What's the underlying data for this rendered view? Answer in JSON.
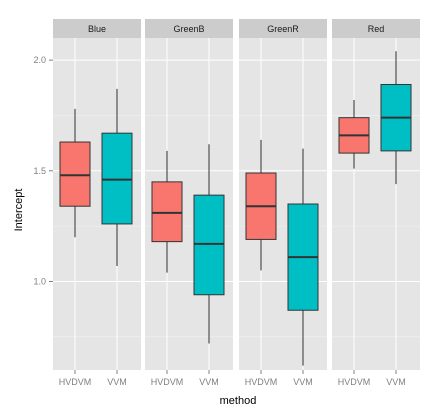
{
  "chart_data": {
    "type": "boxplot",
    "xlabel": "method",
    "ylabel": "Intercept",
    "ylim": [
      0.6,
      2.1
    ],
    "y_ticks": [
      1.0,
      1.5,
      2.0
    ],
    "y_tick_labels": [
      "1.0",
      "1.5",
      "2.0"
    ],
    "y_minor_ticks": [
      0.75,
      1.25,
      1.75
    ],
    "categories": [
      "HVDVM",
      "VVM"
    ],
    "colors": {
      "HVDVM": "#f8766d",
      "VVM": "#00bfc4"
    },
    "grid": true,
    "legend": "none",
    "panels": [
      {
        "name": "Blue",
        "boxes": [
          {
            "category": "HVDVM",
            "min": 1.2,
            "q1": 1.34,
            "median": 1.48,
            "q3": 1.63,
            "max": 1.78
          },
          {
            "category": "VVM",
            "min": 1.07,
            "q1": 1.26,
            "median": 1.46,
            "q3": 1.67,
            "max": 1.87
          }
        ]
      },
      {
        "name": "GreenB",
        "boxes": [
          {
            "category": "HVDVM",
            "min": 1.04,
            "q1": 1.18,
            "median": 1.31,
            "q3": 1.45,
            "max": 1.59
          },
          {
            "category": "VVM",
            "min": 0.72,
            "q1": 0.94,
            "median": 1.17,
            "q3": 1.39,
            "max": 1.62
          }
        ]
      },
      {
        "name": "GreenR",
        "boxes": [
          {
            "category": "HVDVM",
            "min": 1.05,
            "q1": 1.19,
            "median": 1.34,
            "q3": 1.49,
            "max": 1.64
          },
          {
            "category": "VVM",
            "min": 0.62,
            "q1": 0.87,
            "median": 1.11,
            "q3": 1.35,
            "max": 1.6
          }
        ]
      },
      {
        "name": "Red",
        "boxes": [
          {
            "category": "HVDVM",
            "min": 1.51,
            "q1": 1.58,
            "median": 1.66,
            "q3": 1.74,
            "max": 1.82
          },
          {
            "category": "VVM",
            "min": 1.44,
            "q1": 1.59,
            "median": 1.74,
            "q3": 1.89,
            "max": 2.04
          }
        ]
      }
    ]
  }
}
